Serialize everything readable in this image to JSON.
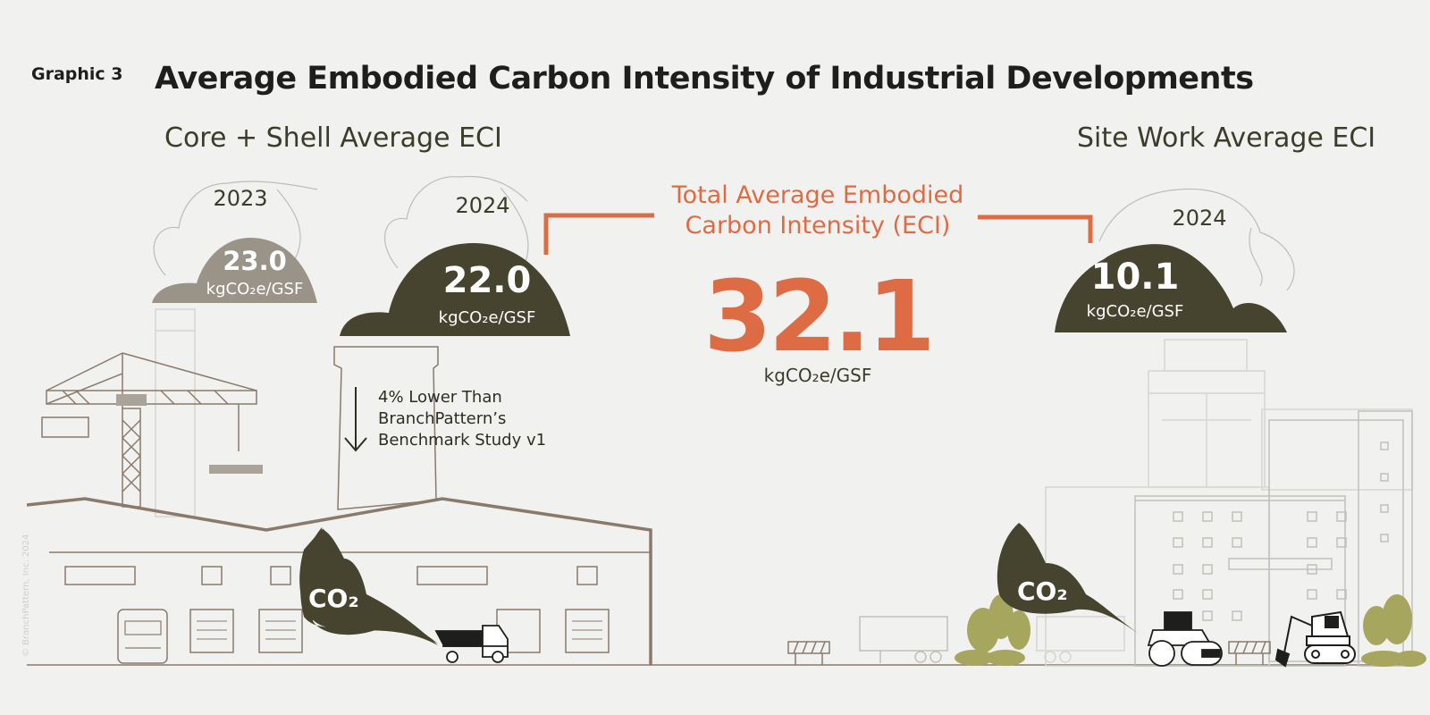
{
  "header": {
    "graphic_label": "Graphic 3",
    "title": "Average Embodied Carbon Intensity of Industrial Developments"
  },
  "core_shell": {
    "section_title": "Core + Shell Average ECI",
    "y2023": {
      "year": "2023",
      "value": "23.0",
      "unit": "kgCO₂e/GSF"
    },
    "y2024": {
      "year": "2024",
      "value": "22.0",
      "unit": "kgCO₂e/GSF"
    },
    "note": [
      "4% Lower Than",
      "BranchPattern’s",
      "Benchmark Study v1"
    ]
  },
  "total": {
    "title_line1": "Total Average Embodied",
    "title_line2": "Carbon Intensity (ECI)",
    "value": "32.1",
    "unit": "kgCO₂e/GSF"
  },
  "site_work": {
    "section_title": "Site Work Average ECI",
    "y2024": {
      "year": "2024",
      "value": "10.1",
      "unit": "kgCO₂e/GSF"
    }
  },
  "co2_labels": {
    "left": "CO₂",
    "right": "CO₂"
  },
  "copyright": "© BranchPattern, Inc. 2024",
  "colors": {
    "accent": "#dd6c44",
    "dark_cloud": "#46432f",
    "light_cloud": "#999388",
    "line_brown": "#8a7a6b",
    "tree_green": "#a7a65f",
    "background": "#f1f1f0"
  }
}
